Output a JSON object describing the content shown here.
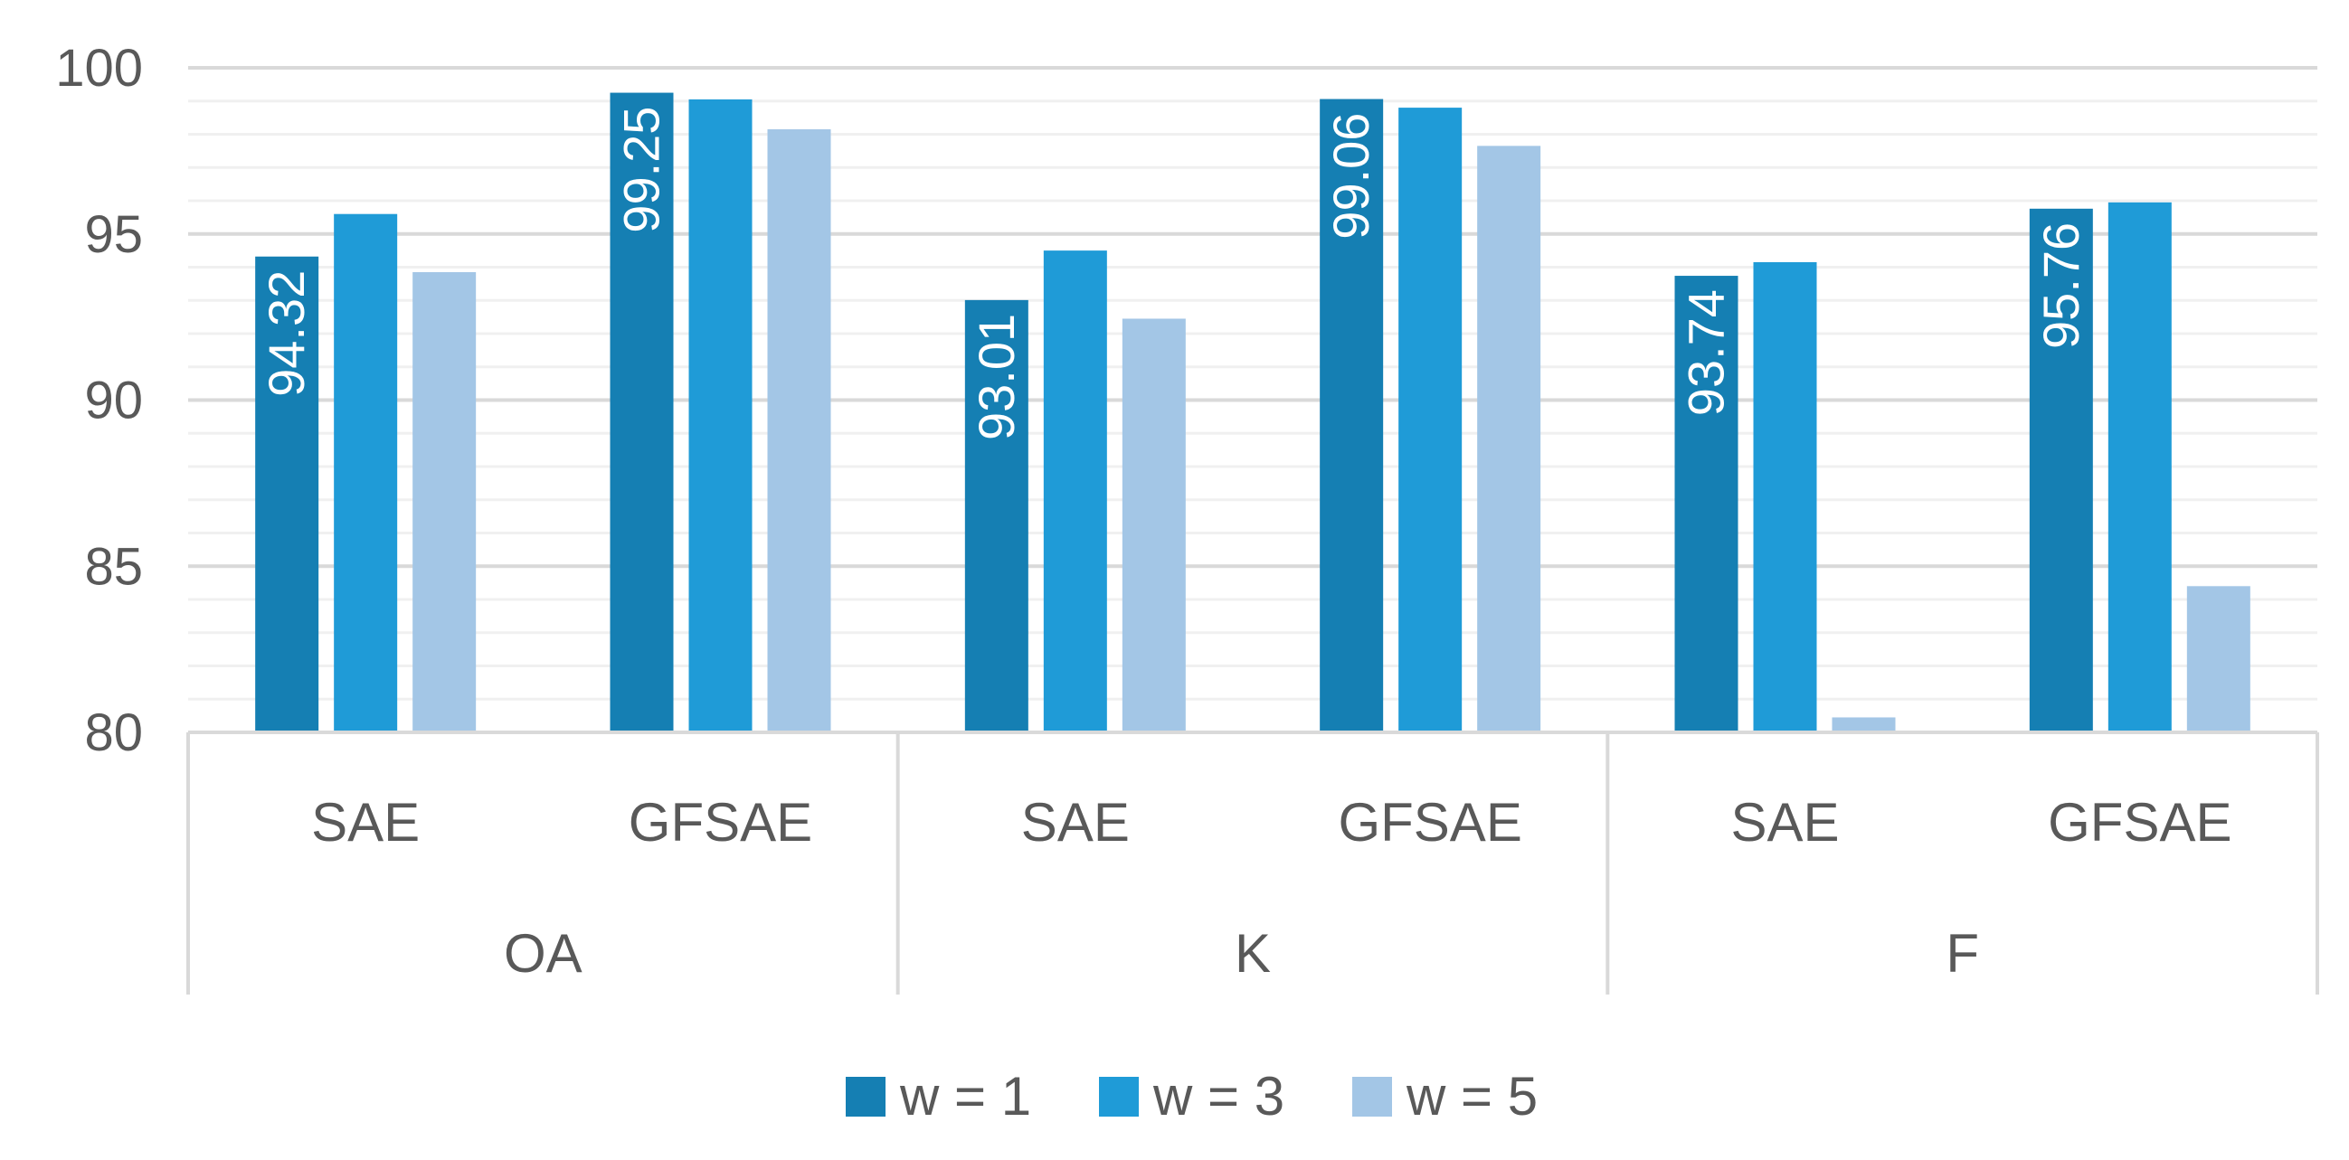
{
  "chart_data": {
    "type": "bar",
    "title": "",
    "xlabel": "",
    "ylabel": "",
    "ylim": [
      80,
      100
    ],
    "yticks": [
      80,
      85,
      90,
      95,
      100
    ],
    "minor_grid_step": 1,
    "groups": [
      {
        "label": "OA",
        "categories": [
          "SAE",
          "GFSAE"
        ]
      },
      {
        "label": "K",
        "categories": [
          "SAE",
          "GFSAE"
        ]
      },
      {
        "label": "F",
        "categories": [
          "SAE",
          "GFSAE"
        ]
      }
    ],
    "categories": [
      "SAE",
      "GFSAE",
      "SAE",
      "GFSAE",
      "SAE",
      "GFSAE"
    ],
    "series": [
      {
        "name": "w = 1",
        "color": "#157fb3",
        "values": [
          94.32,
          99.25,
          93.01,
          99.06,
          93.74,
          95.76
        ],
        "show_labels": true
      },
      {
        "name": "w = 3",
        "color": "#1f9bd7",
        "values": [
          95.6,
          99.05,
          94.5,
          98.8,
          94.15,
          95.95
        ],
        "show_labels": false
      },
      {
        "name": "w = 5",
        "color": "#a3c6e6",
        "values": [
          93.85,
          98.15,
          92.45,
          97.65,
          80.45,
          84.4
        ],
        "show_labels": false
      }
    ],
    "legend_position": "bottom-center",
    "grid": true
  }
}
